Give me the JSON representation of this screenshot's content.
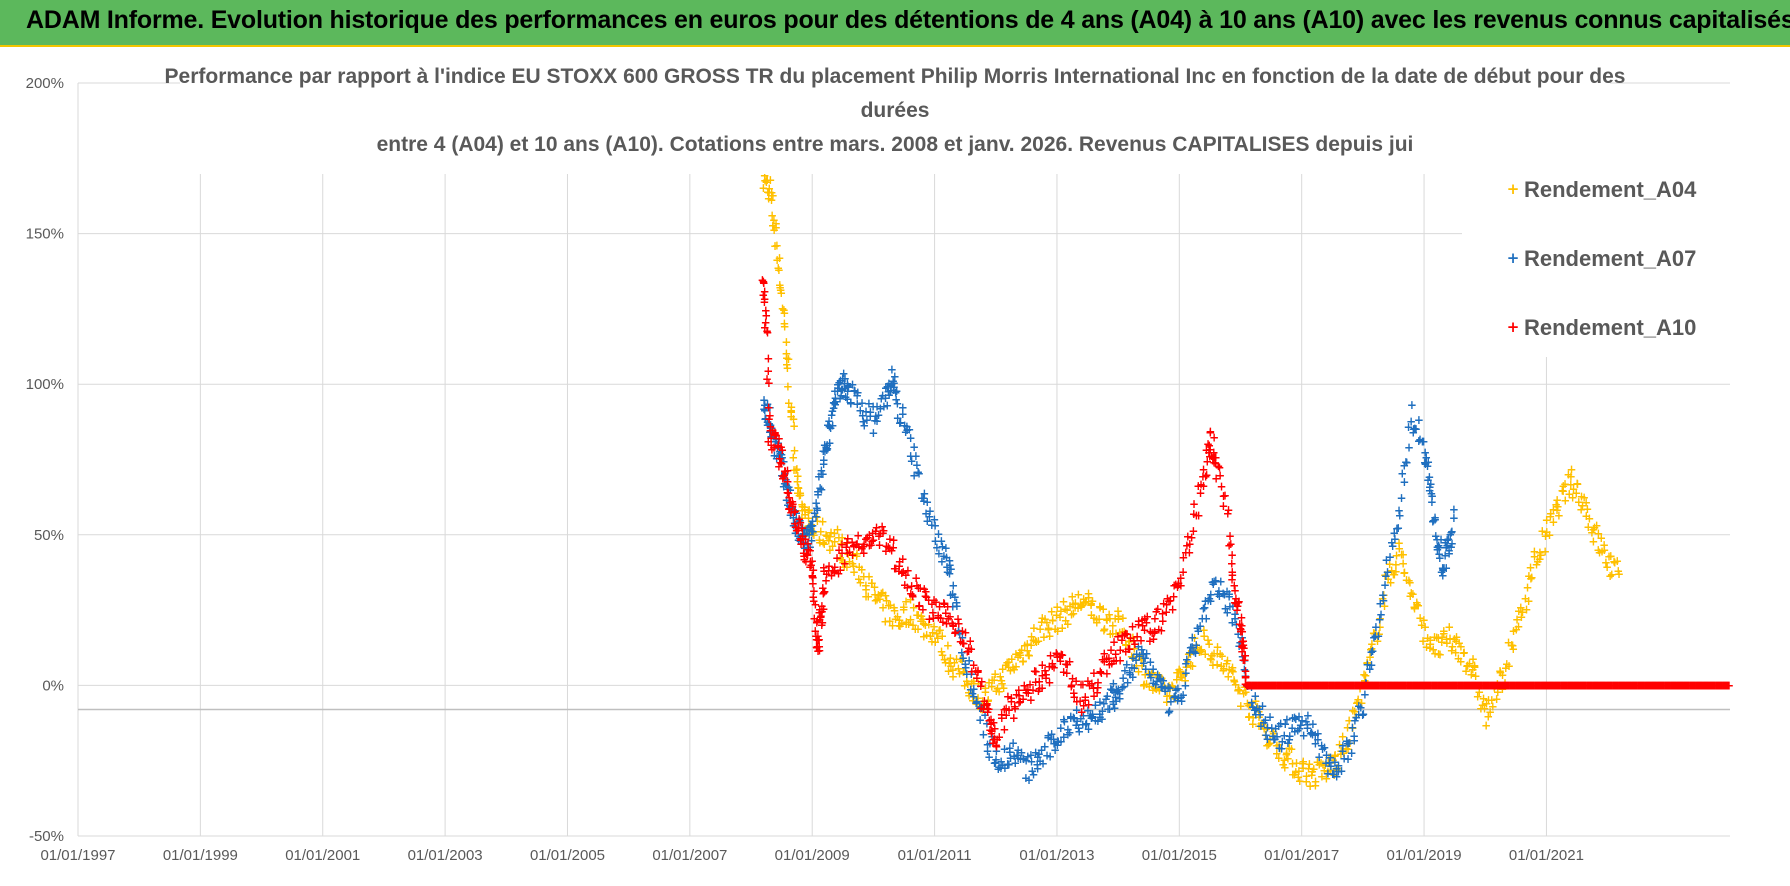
{
  "banner": {
    "text": "ADAM Informe. Evolution historique des performances en euros pour des détentions de 4 ans (A04) à 10 ans (A10) avec les revenus connus capitalisés"
  },
  "chart_data": {
    "type": "scatter",
    "title_lines": [
      "Performance par rapport à l'indice EU STOXX 600 GROSS TR  du placement Philip Morris International Inc en fonction de la date de début pour des",
      "durées",
      "entre 4 (A04) et 10 ans (A10).  Cotations entre mars. 2008 et janv. 2026.  Revenus CAPITALISES  depuis jui"
    ],
    "xlabel": "",
    "ylabel": "",
    "xlim": [
      1997.0,
      2024.0
    ],
    "ylim": [
      -50,
      200
    ],
    "x_ticks": [
      1997,
      1999,
      2001,
      2003,
      2005,
      2007,
      2009,
      2011,
      2013,
      2015,
      2017,
      2019,
      2021
    ],
    "x_tick_labels": [
      "01/01/1997",
      "01/01/1999",
      "01/01/2001",
      "01/01/2003",
      "01/01/2005",
      "01/01/2007",
      "01/01/2009",
      "01/01/2011",
      "01/01/2013",
      "01/01/2015",
      "01/01/2017",
      "01/01/2019",
      "01/01/2021"
    ],
    "y_ticks": [
      -50,
      0,
      50,
      100,
      150,
      200
    ],
    "y_tick_labels": [
      "-50%",
      "0%",
      "50%",
      "100%",
      "150%",
      "200%"
    ],
    "grid": true,
    "legend_position": "top-right",
    "series": [
      {
        "name": "Rendement_A04",
        "color": "#ffc000",
        "points": [
          [
            2008.2,
            168
          ],
          [
            2008.3,
            165
          ],
          [
            2008.4,
            150
          ],
          [
            2008.5,
            130
          ],
          [
            2008.6,
            105
          ],
          [
            2008.7,
            80
          ],
          [
            2008.8,
            60
          ],
          [
            2008.9,
            55
          ],
          [
            2009.0,
            52
          ],
          [
            2009.2,
            50
          ],
          [
            2009.4,
            48
          ],
          [
            2009.6,
            42
          ],
          [
            2009.8,
            38
          ],
          [
            2010.0,
            30
          ],
          [
            2010.2,
            25
          ],
          [
            2010.4,
            22
          ],
          [
            2010.6,
            25
          ],
          [
            2010.8,
            20
          ],
          [
            2011.0,
            18
          ],
          [
            2011.2,
            10
          ],
          [
            2011.4,
            5
          ],
          [
            2011.6,
            0
          ],
          [
            2011.8,
            -5
          ],
          [
            2012.0,
            0
          ],
          [
            2012.2,
            5
          ],
          [
            2012.4,
            10
          ],
          [
            2012.6,
            15
          ],
          [
            2012.8,
            20
          ],
          [
            2013.0,
            22
          ],
          [
            2013.2,
            25
          ],
          [
            2013.4,
            28
          ],
          [
            2013.6,
            25
          ],
          [
            2013.8,
            22
          ],
          [
            2014.0,
            20
          ],
          [
            2014.2,
            15
          ],
          [
            2014.4,
            5
          ],
          [
            2014.6,
            0
          ],
          [
            2014.8,
            -3
          ],
          [
            2015.0,
            2
          ],
          [
            2015.2,
            10
          ],
          [
            2015.4,
            15
          ],
          [
            2015.6,
            10
          ],
          [
            2015.8,
            5
          ],
          [
            2016.0,
            -2
          ],
          [
            2016.2,
            -8
          ],
          [
            2016.4,
            -15
          ],
          [
            2016.6,
            -20
          ],
          [
            2016.8,
            -25
          ],
          [
            2017.0,
            -28
          ],
          [
            2017.2,
            -30
          ],
          [
            2017.4,
            -28
          ],
          [
            2017.6,
            -25
          ],
          [
            2017.8,
            -15
          ],
          [
            2018.0,
            0
          ],
          [
            2018.2,
            15
          ],
          [
            2018.4,
            35
          ],
          [
            2018.6,
            45
          ],
          [
            2018.8,
            30
          ],
          [
            2019.0,
            18
          ],
          [
            2019.2,
            12
          ],
          [
            2019.4,
            15
          ],
          [
            2019.6,
            12
          ],
          [
            2019.8,
            5
          ],
          [
            2020.0,
            -10
          ],
          [
            2020.2,
            -2
          ],
          [
            2020.4,
            10
          ],
          [
            2020.6,
            25
          ],
          [
            2020.8,
            40
          ],
          [
            2021.0,
            50
          ],
          [
            2021.2,
            60
          ],
          [
            2021.4,
            68
          ],
          [
            2021.6,
            62
          ],
          [
            2021.8,
            50
          ],
          [
            2022.0,
            42
          ],
          [
            2022.2,
            35
          ]
        ]
      },
      {
        "name": "Rendement_A07",
        "color": "#1f6fbf",
        "points": [
          [
            2008.2,
            95
          ],
          [
            2008.3,
            88
          ],
          [
            2008.4,
            80
          ],
          [
            2008.5,
            72
          ],
          [
            2008.6,
            65
          ],
          [
            2008.7,
            55
          ],
          [
            2008.8,
            50
          ],
          [
            2008.9,
            48
          ],
          [
            2009.0,
            50
          ],
          [
            2009.1,
            62
          ],
          [
            2009.2,
            78
          ],
          [
            2009.3,
            88
          ],
          [
            2009.4,
            95
          ],
          [
            2009.5,
            100
          ],
          [
            2009.6,
            98
          ],
          [
            2009.8,
            92
          ],
          [
            2010.0,
            88
          ],
          [
            2010.2,
            95
          ],
          [
            2010.3,
            102
          ],
          [
            2010.4,
            92
          ],
          [
            2010.6,
            80
          ],
          [
            2010.8,
            65
          ],
          [
            2011.0,
            50
          ],
          [
            2011.2,
            42
          ],
          [
            2011.3,
            30
          ],
          [
            2011.5,
            10
          ],
          [
            2011.7,
            -5
          ],
          [
            2011.9,
            -20
          ],
          [
            2012.1,
            -25
          ],
          [
            2012.3,
            -22
          ],
          [
            2012.5,
            -28
          ],
          [
            2012.7,
            -25
          ],
          [
            2012.9,
            -20
          ],
          [
            2013.1,
            -15
          ],
          [
            2013.3,
            -10
          ],
          [
            2013.5,
            -12
          ],
          [
            2013.7,
            -8
          ],
          [
            2013.9,
            -5
          ],
          [
            2014.0,
            -2
          ],
          [
            2014.2,
            5
          ],
          [
            2014.4,
            10
          ],
          [
            2014.6,
            3
          ],
          [
            2014.8,
            -5
          ],
          [
            2015.0,
            -5
          ],
          [
            2015.2,
            10
          ],
          [
            2015.4,
            25
          ],
          [
            2015.6,
            32
          ],
          [
            2015.8,
            28
          ],
          [
            2016.0,
            15
          ],
          [
            2016.2,
            -5
          ],
          [
            2016.4,
            -12
          ],
          [
            2016.6,
            -18
          ],
          [
            2016.8,
            -15
          ],
          [
            2017.0,
            -12
          ],
          [
            2017.2,
            -15
          ],
          [
            2017.4,
            -25
          ],
          [
            2017.6,
            -28
          ],
          [
            2017.8,
            -18
          ],
          [
            2018.0,
            -5
          ],
          [
            2018.2,
            15
          ],
          [
            2018.4,
            40
          ],
          [
            2018.6,
            60
          ],
          [
            2018.8,
            90
          ],
          [
            2019.0,
            80
          ],
          [
            2019.1,
            65
          ],
          [
            2019.2,
            50
          ],
          [
            2019.3,
            40
          ],
          [
            2019.4,
            45
          ],
          [
            2019.5,
            55
          ]
        ]
      },
      {
        "name": "Rendement_A10",
        "color": "#ff0000",
        "points": [
          [
            2008.2,
            135
          ],
          [
            2008.25,
            120
          ],
          [
            2008.3,
            85
          ],
          [
            2008.4,
            80
          ],
          [
            2008.5,
            75
          ],
          [
            2008.6,
            65
          ],
          [
            2008.7,
            58
          ],
          [
            2008.8,
            50
          ],
          [
            2008.9,
            45
          ],
          [
            2009.0,
            40
          ],
          [
            2009.05,
            20
          ],
          [
            2009.1,
            15
          ],
          [
            2009.15,
            25
          ],
          [
            2009.2,
            35
          ],
          [
            2009.4,
            40
          ],
          [
            2009.6,
            48
          ],
          [
            2009.8,
            45
          ],
          [
            2010.0,
            50
          ],
          [
            2010.2,
            48
          ],
          [
            2010.4,
            42
          ],
          [
            2010.6,
            35
          ],
          [
            2010.8,
            28
          ],
          [
            2011.0,
            25
          ],
          [
            2011.2,
            22
          ],
          [
            2011.4,
            20
          ],
          [
            2011.6,
            10
          ],
          [
            2011.8,
            -5
          ],
          [
            2011.9,
            -12
          ],
          [
            2012.0,
            -18
          ],
          [
            2012.2,
            -8
          ],
          [
            2012.4,
            -5
          ],
          [
            2012.6,
            0
          ],
          [
            2012.8,
            3
          ],
          [
            2013.0,
            8
          ],
          [
            2013.2,
            5
          ],
          [
            2013.4,
            -5
          ],
          [
            2013.6,
            0
          ],
          [
            2013.8,
            8
          ],
          [
            2014.0,
            12
          ],
          [
            2014.2,
            15
          ],
          [
            2014.4,
            18
          ],
          [
            2014.6,
            20
          ],
          [
            2014.8,
            25
          ],
          [
            2015.0,
            35
          ],
          [
            2015.2,
            50
          ],
          [
            2015.4,
            70
          ],
          [
            2015.5,
            82
          ],
          [
            2015.6,
            75
          ],
          [
            2015.8,
            55
          ],
          [
            2015.9,
            30
          ],
          [
            2016.0,
            20
          ],
          [
            2016.05,
            15
          ],
          [
            2016.1,
            0
          ],
          [
            2024.0,
            0
          ]
        ]
      }
    ]
  }
}
